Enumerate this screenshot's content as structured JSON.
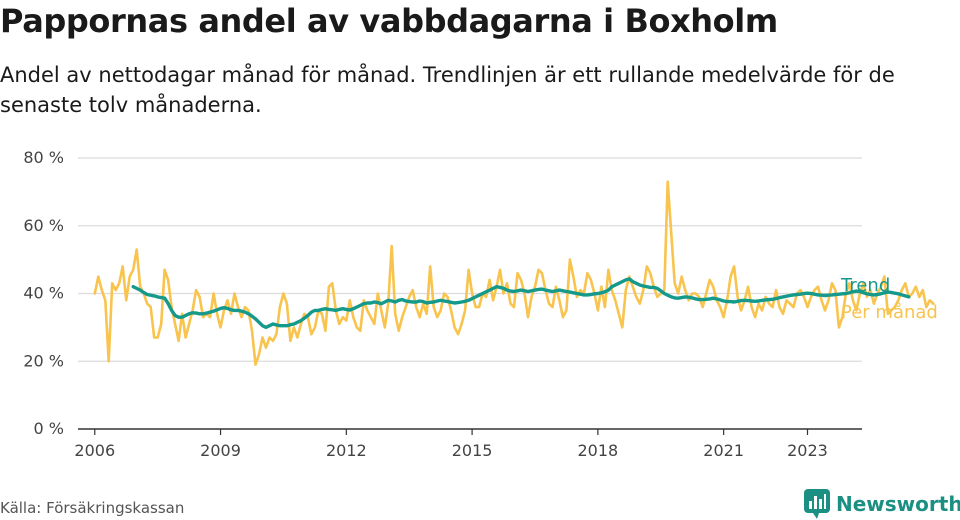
{
  "header": {
    "title": "Pappornas andel av vabbdagarna i Boxholm",
    "subtitle": "Andel av nettodagar månad för månad. Trendlinjen är ett rullande medelvärde för de senaste tolv månaderna."
  },
  "footer": {
    "source": "Källa: Försäkringskassan",
    "brand": "Newsworthy"
  },
  "colors": {
    "trend": "#14998a",
    "monthly": "#f8c44e",
    "grid": "#dcdcdc",
    "axis": "#333333",
    "brand": "#1a8f82"
  },
  "chart_data": {
    "type": "line",
    "ylim": [
      0,
      80
    ],
    "yticks": [
      0,
      20,
      40,
      60,
      80
    ],
    "ytick_labels": [
      "0 %",
      "20 %",
      "40 %",
      "60 %",
      "80 %"
    ],
    "xlim": [
      2005.6,
      2024.3
    ],
    "xticks": [
      2006,
      2009,
      2012,
      2015,
      2018,
      2021,
      2023
    ],
    "xtick_labels": [
      "2006",
      "2009",
      "2012",
      "2015",
      "2018",
      "2021",
      "2023"
    ],
    "grid": "horizontal",
    "legend": "direct labels at right end of lines",
    "series": [
      {
        "name": "Per månad",
        "color": "#f8c44e",
        "start": 2006.0,
        "step_months": 1,
        "values": [
          40,
          45,
          41,
          38,
          20,
          43,
          41,
          43,
          48,
          38,
          45,
          47,
          53,
          42,
          40,
          37,
          36,
          27,
          27,
          31,
          47,
          44,
          36,
          31,
          26,
          34,
          27,
          31,
          35,
          41,
          39,
          33,
          34,
          33,
          40,
          34,
          30,
          35,
          38,
          34,
          40,
          36,
          33,
          36,
          35,
          29,
          19,
          22,
          27,
          24,
          27,
          26,
          28,
          36,
          40,
          37,
          26,
          30,
          27,
          31,
          34,
          33,
          28,
          30,
          35,
          34,
          29,
          42,
          43,
          35,
          31,
          33,
          32,
          38,
          33,
          30,
          29,
          38,
          35,
          33,
          31,
          40,
          35,
          30,
          37,
          54,
          34,
          29,
          33,
          36,
          39,
          41,
          36,
          33,
          37,
          34,
          48,
          36,
          33,
          35,
          40,
          39,
          35,
          30,
          28,
          31,
          35,
          47,
          40,
          36,
          36,
          40,
          39,
          44,
          38,
          42,
          47,
          40,
          43,
          37,
          36,
          46,
          44,
          40,
          33,
          39,
          42,
          47,
          46,
          41,
          37,
          36,
          42,
          38,
          33,
          35,
          50,
          45,
          39,
          41,
          40,
          46,
          44,
          40,
          35,
          42,
          36,
          47,
          41,
          38,
          34,
          30,
          41,
          45,
          42,
          39,
          37,
          41,
          48,
          46,
          42,
          39,
          40,
          41,
          73,
          58,
          43,
          40,
          45,
          41,
          38,
          40,
          40,
          39,
          36,
          40,
          44,
          42,
          38,
          36,
          33,
          38,
          45,
          48,
          39,
          35,
          38,
          42,
          36,
          33,
          37,
          35,
          39,
          37,
          36,
          41,
          36,
          34,
          38,
          37,
          36,
          40,
          41,
          39,
          36,
          39,
          41,
          42,
          38,
          35,
          38,
          43,
          41,
          30,
          33,
          40,
          43,
          38,
          35,
          40,
          43,
          39,
          41,
          37,
          40,
          42,
          45,
          34,
          35,
          36,
          38,
          41,
          43,
          39,
          40,
          42,
          39,
          41,
          36,
          38,
          37
        ]
      },
      {
        "name": "Trend",
        "color": "#14998a",
        "start": 2006.917,
        "step_months": 1,
        "values": [
          42,
          41.5,
          41,
          40.3,
          39.7,
          39.5,
          39.3,
          39,
          38.8,
          38.6,
          37,
          35,
          33.5,
          33,
          33,
          33.5,
          34,
          34.3,
          34.2,
          34,
          34,
          34.2,
          34.5,
          34.8,
          35.2,
          35.6,
          35.8,
          35.6,
          35.2,
          35,
          35,
          34.8,
          34.5,
          34,
          33.3,
          32.5,
          31.5,
          30.5,
          30,
          30.5,
          31,
          30.7,
          30.5,
          30.5,
          30.5,
          30.8,
          31,
          31.5,
          32,
          32.7,
          33.5,
          34.5,
          35,
          35,
          35.3,
          35.5,
          35.3,
          35.2,
          35,
          35.3,
          35.5,
          35.3,
          35.1,
          35.5,
          36,
          36.5,
          37,
          37.2,
          37.2,
          37.5,
          37.3,
          37,
          37.5,
          38,
          37.8,
          37.5,
          38,
          38.2,
          37.8,
          37.6,
          37.5,
          37.5,
          37.8,
          37.6,
          37.2,
          37.4,
          37.5,
          37.8,
          38,
          37.8,
          37.6,
          37.4,
          37.2,
          37.3,
          37.5,
          37.7,
          38,
          38.5,
          39,
          39.5,
          40,
          40.5,
          41,
          41.5,
          42,
          41.8,
          41.5,
          41,
          40.7,
          40.6,
          40.8,
          41,
          40.8,
          40.6,
          40.8,
          41,
          41.2,
          41.3,
          41,
          40.8,
          40.6,
          40.8,
          41,
          40.8,
          40.6,
          40.4,
          40.2,
          40,
          39.8,
          39.6,
          39.6,
          39.7,
          39.9,
          40,
          40.2,
          40.5,
          41,
          42,
          42.5,
          43,
          43.5,
          44,
          44.3,
          43.5,
          43,
          42.5,
          42.2,
          42,
          41.8,
          41.8,
          41.5,
          40.8,
          40,
          39.5,
          39,
          38.7,
          38.6,
          38.8,
          39,
          38.9,
          38.7,
          38.4,
          38.2,
          38.2,
          38.3,
          38.4,
          38.6,
          38.4,
          38.1,
          37.8,
          37.6,
          37.6,
          37.5,
          37.7,
          37.9,
          38,
          37.9,
          37.8,
          37.7,
          37.8,
          38,
          38.1,
          38.2,
          38.3,
          38.5,
          38.8,
          39,
          39.2,
          39.4,
          39.6,
          39.7,
          39.8,
          40,
          40.1,
          40,
          39.8,
          39.6,
          39.5,
          39.4,
          39.5,
          39.6,
          39.7,
          39.8,
          39.9,
          40,
          40.2,
          40.5,
          40.7,
          40.6,
          40.2,
          39.9,
          39.7,
          39.6,
          39.7,
          39.9,
          40.2,
          40.4,
          40.3,
          40.1,
          39.9,
          39.6,
          39.3,
          39
        ]
      }
    ]
  }
}
